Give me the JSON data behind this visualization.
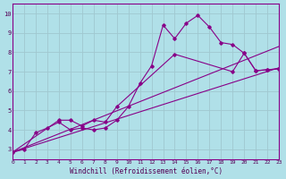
{
  "xlabel": "Windchill (Refroidissement éolien,°C)",
  "background_color": "#b0e0e8",
  "grid_color": "#a0c8d0",
  "line_color": "#880088",
  "xlim": [
    0,
    23
  ],
  "ylim": [
    2.5,
    10.5
  ],
  "xticks": [
    0,
    1,
    2,
    3,
    4,
    5,
    6,
    7,
    8,
    9,
    10,
    11,
    12,
    13,
    14,
    15,
    16,
    17,
    18,
    19,
    20,
    21,
    22,
    23
  ],
  "yticks": [
    3,
    4,
    5,
    6,
    7,
    8,
    9,
    10
  ],
  "series1_x": [
    0,
    1,
    2,
    3,
    4,
    5,
    6,
    7,
    8,
    9,
    10,
    11,
    12,
    13,
    14,
    15,
    16,
    17,
    18,
    19,
    20,
    21,
    22,
    23
  ],
  "series1_y": [
    2.85,
    3.0,
    3.85,
    4.1,
    4.4,
    4.0,
    4.1,
    4.0,
    4.1,
    4.5,
    5.2,
    6.4,
    7.3,
    9.4,
    8.7,
    9.5,
    9.9,
    9.3,
    8.5,
    8.4,
    7.95,
    7.05,
    7.1,
    7.15
  ],
  "series2_x": [
    0,
    4,
    5,
    6,
    7,
    8,
    9,
    14,
    19,
    20,
    21,
    22,
    23
  ],
  "series2_y": [
    2.85,
    4.5,
    4.5,
    4.2,
    4.5,
    4.4,
    5.2,
    7.9,
    7.0,
    7.95,
    7.05,
    7.1,
    7.15
  ],
  "series3_x": [
    0,
    23
  ],
  "series3_y": [
    2.85,
    8.3
  ],
  "series4_x": [
    0,
    23
  ],
  "series4_y": [
    2.85,
    7.2
  ]
}
